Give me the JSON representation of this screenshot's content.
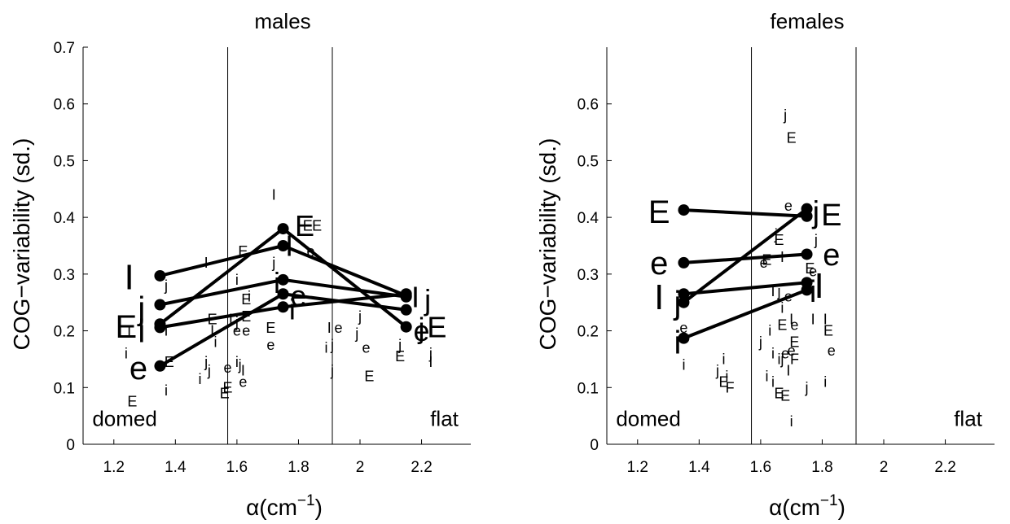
{
  "chart_data": [
    {
      "type": "line",
      "title": "males",
      "ylabel": "COG−variability (sd.)",
      "xlabel_main": "α(cm",
      "xlabel_sup": "−1",
      "xlabel_end": ")",
      "xlim": [
        1.1,
        2.36
      ],
      "ylim": [
        0,
        0.7
      ],
      "xticks": [
        1.2,
        1.4,
        1.6,
        1.8,
        2,
        2.2
      ],
      "xtick_labels": [
        "1.2",
        "1.4",
        "1.6",
        "1.8",
        "2",
        "2.2"
      ],
      "yticks": [
        0,
        0.1,
        0.2,
        0.3,
        0.4,
        0.5,
        0.6,
        0.7
      ],
      "ytick_labels": [
        "0",
        "0.1",
        "0.2",
        "0.3",
        "0.4",
        "0.5",
        "0.6",
        "0.7"
      ],
      "vlines": [
        1.57,
        1.91
      ],
      "regions": [
        {
          "text": "domed",
          "x": 1.13,
          "y": 0.045,
          "anchor": "start"
        },
        {
          "text": "flat",
          "x": 2.32,
          "y": 0.045,
          "anchor": "end"
        }
      ],
      "series": [
        {
          "x": [
            1.35,
            1.75,
            2.15
          ],
          "values": [
            0.297,
            0.35,
            0.262
          ]
        },
        {
          "x": [
            1.35,
            1.75,
            2.15
          ],
          "values": [
            0.246,
            0.29,
            0.26
          ]
        },
        {
          "x": [
            1.35,
            1.75,
            2.15
          ],
          "values": [
            0.212,
            0.38,
            0.207
          ]
        },
        {
          "x": [
            1.35,
            1.75,
            2.15
          ],
          "values": [
            0.206,
            0.242,
            0.265
          ]
        },
        {
          "x": [
            1.35,
            1.75,
            2.15
          ],
          "values": [
            0.138,
            0.265,
            0.237
          ]
        }
      ],
      "big_labels": [
        {
          "text": "I",
          "x": 1.25,
          "y": 0.295,
          "size": 44
        },
        {
          "text": "j",
          "x": 1.29,
          "y": 0.24,
          "size": 40
        },
        {
          "text": "E",
          "x": 1.24,
          "y": 0.208,
          "size": 40
        },
        {
          "text": "i",
          "x": 1.29,
          "y": 0.2,
          "size": 40
        },
        {
          "text": "e",
          "x": 1.28,
          "y": 0.135,
          "size": 40
        },
        {
          "text": "E",
          "x": 1.82,
          "y": 0.385,
          "size": 36
        },
        {
          "text": "I",
          "x": 1.77,
          "y": 0.35,
          "size": 36
        },
        {
          "text": "i",
          "x": 1.73,
          "y": 0.285,
          "size": 36
        },
        {
          "text": "e",
          "x": 1.8,
          "y": 0.262,
          "size": 36
        },
        {
          "text": "i",
          "x": 1.78,
          "y": 0.238,
          "size": 36
        },
        {
          "text": "I",
          "x": 2.18,
          "y": 0.26,
          "size": 36
        },
        {
          "text": "j",
          "x": 2.22,
          "y": 0.255,
          "size": 36
        },
        {
          "text": "j",
          "x": 2.2,
          "y": 0.205,
          "size": 36
        },
        {
          "text": "e",
          "x": 2.2,
          "y": 0.2,
          "size": 36
        },
        {
          "text": "E",
          "x": 2.25,
          "y": 0.207,
          "size": 36
        }
      ],
      "scatter_labels": [
        {
          "text": "I",
          "x": 1.72,
          "y": 0.44
        },
        {
          "text": "E",
          "x": 1.83,
          "y": 0.385
        },
        {
          "text": "E",
          "x": 1.86,
          "y": 0.385
        },
        {
          "text": "e",
          "x": 1.84,
          "y": 0.34
        },
        {
          "text": "E",
          "x": 1.62,
          "y": 0.34
        },
        {
          "text": "I",
          "x": 1.5,
          "y": 0.32
        },
        {
          "text": "j",
          "x": 1.72,
          "y": 0.32
        },
        {
          "text": "j",
          "x": 1.37,
          "y": 0.28
        },
        {
          "text": "i",
          "x": 1.6,
          "y": 0.29
        },
        {
          "text": "i",
          "x": 1.64,
          "y": 0.26
        },
        {
          "text": "E",
          "x": 1.63,
          "y": 0.255
        },
        {
          "text": "E",
          "x": 1.52,
          "y": 0.22
        },
        {
          "text": "I",
          "x": 1.58,
          "y": 0.22
        },
        {
          "text": "j",
          "x": 1.6,
          "y": 0.215
        },
        {
          "text": "E",
          "x": 1.63,
          "y": 0.225
        },
        {
          "text": "e",
          "x": 1.6,
          "y": 0.2
        },
        {
          "text": "e",
          "x": 1.63,
          "y": 0.2
        },
        {
          "text": "E",
          "x": 1.71,
          "y": 0.205
        },
        {
          "text": "e",
          "x": 1.71,
          "y": 0.175
        },
        {
          "text": "I",
          "x": 1.52,
          "y": 0.2
        },
        {
          "text": "i",
          "x": 1.53,
          "y": 0.18
        },
        {
          "text": "j",
          "x": 1.5,
          "y": 0.145
        },
        {
          "text": "j",
          "x": 1.51,
          "y": 0.13
        },
        {
          "text": "i",
          "x": 1.48,
          "y": 0.115
        },
        {
          "text": "e",
          "x": 1.57,
          "y": 0.135
        },
        {
          "text": "i",
          "x": 1.6,
          "y": 0.145
        },
        {
          "text": "j",
          "x": 1.61,
          "y": 0.14
        },
        {
          "text": "I",
          "x": 1.62,
          "y": 0.13
        },
        {
          "text": "e",
          "x": 1.62,
          "y": 0.11
        },
        {
          "text": "E",
          "x": 1.57,
          "y": 0.1
        },
        {
          "text": "E",
          "x": 1.56,
          "y": 0.09
        },
        {
          "text": "I",
          "x": 1.25,
          "y": 0.2
        },
        {
          "text": "i",
          "x": 1.24,
          "y": 0.16
        },
        {
          "text": "I",
          "x": 1.37,
          "y": 0.2
        },
        {
          "text": "E",
          "x": 1.38,
          "y": 0.145
        },
        {
          "text": "i",
          "x": 1.37,
          "y": 0.095
        },
        {
          "text": "E",
          "x": 1.26,
          "y": 0.075
        },
        {
          "text": "I",
          "x": 1.9,
          "y": 0.205
        },
        {
          "text": "i",
          "x": 1.89,
          "y": 0.17
        },
        {
          "text": "j",
          "x": 1.91,
          "y": 0.175
        },
        {
          "text": "e",
          "x": 1.93,
          "y": 0.205
        },
        {
          "text": "j",
          "x": 1.91,
          "y": 0.13
        },
        {
          "text": "j",
          "x": 2.0,
          "y": 0.225
        },
        {
          "text": "j",
          "x": 1.99,
          "y": 0.195
        },
        {
          "text": "e",
          "x": 2.02,
          "y": 0.17
        },
        {
          "text": "E",
          "x": 2.03,
          "y": 0.12
        },
        {
          "text": "E",
          "x": 2.13,
          "y": 0.155
        },
        {
          "text": "j",
          "x": 2.13,
          "y": 0.175
        },
        {
          "text": "j",
          "x": 2.23,
          "y": 0.16
        },
        {
          "text": "I",
          "x": 2.23,
          "y": 0.145
        }
      ]
    },
    {
      "type": "line",
      "title": "females",
      "ylabel": "COG−variability (sd.)",
      "xlabel_main": "α(cm",
      "xlabel_sup": "−1",
      "xlabel_end": ")",
      "xlim": [
        1.1,
        2.36
      ],
      "ylim": [
        0,
        0.7
      ],
      "xticks": [
        1.2,
        1.4,
        1.6,
        1.8,
        2,
        2.2
      ],
      "xtick_labels": [
        "1.2",
        "1.4",
        "1.6",
        "1.8",
        "2",
        "2.2"
      ],
      "yticks": [
        0,
        0.1,
        0.2,
        0.3,
        0.4,
        0.5,
        0.6
      ],
      "ytick_labels": [
        "0",
        "0.1",
        "0.2",
        "0.3",
        "0.4",
        "0.5",
        "0.6"
      ],
      "vlines": [
        1.57,
        1.91
      ],
      "regions": [
        {
          "text": "domed",
          "x": 1.13,
          "y": 0.045,
          "anchor": "start"
        },
        {
          "text": "flat",
          "x": 2.32,
          "y": 0.045,
          "anchor": "end"
        }
      ],
      "series": [
        {
          "x": [
            1.35,
            1.75
          ],
          "values": [
            0.413,
            0.402
          ]
        },
        {
          "x": [
            1.35,
            1.75
          ],
          "values": [
            0.32,
            0.335
          ]
        },
        {
          "x": [
            1.35,
            1.75
          ],
          "values": [
            0.265,
            0.285
          ]
        },
        {
          "x": [
            1.35,
            1.75
          ],
          "values": [
            0.25,
            0.415
          ]
        },
        {
          "x": [
            1.35,
            1.75
          ],
          "values": [
            0.187,
            0.272
          ]
        }
      ],
      "big_labels": [
        {
          "text": "E",
          "x": 1.27,
          "y": 0.41,
          "size": 40
        },
        {
          "text": "e",
          "x": 1.27,
          "y": 0.32,
          "size": 40
        },
        {
          "text": "I",
          "x": 1.27,
          "y": 0.26,
          "size": 44
        },
        {
          "text": "j",
          "x": 1.33,
          "y": 0.25,
          "size": 40
        },
        {
          "text": "i",
          "x": 1.33,
          "y": 0.18,
          "size": 40
        },
        {
          "text": "j",
          "x": 1.78,
          "y": 0.41,
          "size": 38
        },
        {
          "text": "E",
          "x": 1.83,
          "y": 0.405,
          "size": 38
        },
        {
          "text": "e",
          "x": 1.83,
          "y": 0.335,
          "size": 38
        },
        {
          "text": "I",
          "x": 1.79,
          "y": 0.28,
          "size": 44
        },
        {
          "text": "i",
          "x": 1.77,
          "y": 0.27,
          "size": 38
        }
      ],
      "scatter_labels": [
        {
          "text": "j",
          "x": 1.68,
          "y": 0.58
        },
        {
          "text": "E",
          "x": 1.7,
          "y": 0.54
        },
        {
          "text": "e",
          "x": 1.69,
          "y": 0.42
        },
        {
          "text": "j",
          "x": 1.65,
          "y": 0.37
        },
        {
          "text": "E",
          "x": 1.66,
          "y": 0.36
        },
        {
          "text": "j",
          "x": 1.78,
          "y": 0.36
        },
        {
          "text": "I",
          "x": 1.67,
          "y": 0.33
        },
        {
          "text": "E",
          "x": 1.62,
          "y": 0.325
        },
        {
          "text": "e",
          "x": 1.61,
          "y": 0.32
        },
        {
          "text": "E",
          "x": 1.76,
          "y": 0.31
        },
        {
          "text": "e",
          "x": 1.77,
          "y": 0.305
        },
        {
          "text": "j",
          "x": 1.66,
          "y": 0.27
        },
        {
          "text": "I",
          "x": 1.64,
          "y": 0.27
        },
        {
          "text": "e",
          "x": 1.69,
          "y": 0.26
        },
        {
          "text": "i",
          "x": 1.67,
          "y": 0.24
        },
        {
          "text": "E",
          "x": 1.67,
          "y": 0.21
        },
        {
          "text": "I",
          "x": 1.7,
          "y": 0.22
        },
        {
          "text": "e",
          "x": 1.71,
          "y": 0.21
        },
        {
          "text": "I",
          "x": 1.77,
          "y": 0.22
        },
        {
          "text": "i",
          "x": 1.63,
          "y": 0.2
        },
        {
          "text": "j",
          "x": 1.6,
          "y": 0.18
        },
        {
          "text": "i",
          "x": 1.64,
          "y": 0.16
        },
        {
          "text": "i",
          "x": 1.66,
          "y": 0.15
        },
        {
          "text": "j",
          "x": 1.67,
          "y": 0.15
        },
        {
          "text": "e",
          "x": 1.68,
          "y": 0.16
        },
        {
          "text": "e",
          "x": 1.7,
          "y": 0.165
        },
        {
          "text": "E",
          "x": 1.71,
          "y": 0.18
        },
        {
          "text": "F",
          "x": 1.71,
          "y": 0.15
        },
        {
          "text": "I",
          "x": 1.69,
          "y": 0.13
        },
        {
          "text": "i",
          "x": 1.48,
          "y": 0.15
        },
        {
          "text": "i",
          "x": 1.49,
          "y": 0.12
        },
        {
          "text": "E",
          "x": 1.48,
          "y": 0.11
        },
        {
          "text": "F",
          "x": 1.5,
          "y": 0.1
        },
        {
          "text": "j",
          "x": 1.46,
          "y": 0.13
        },
        {
          "text": "i",
          "x": 1.62,
          "y": 0.12
        },
        {
          "text": "i",
          "x": 1.64,
          "y": 0.11
        },
        {
          "text": "E",
          "x": 1.66,
          "y": 0.09
        },
        {
          "text": "E",
          "x": 1.68,
          "y": 0.085
        },
        {
          "text": "j",
          "x": 1.75,
          "y": 0.1
        },
        {
          "text": "i",
          "x": 1.81,
          "y": 0.11
        },
        {
          "text": "I",
          "x": 1.81,
          "y": 0.22
        },
        {
          "text": "E",
          "x": 1.82,
          "y": 0.2
        },
        {
          "text": "e",
          "x": 1.83,
          "y": 0.165
        },
        {
          "text": "i",
          "x": 1.7,
          "y": 0.04
        },
        {
          "text": "e",
          "x": 1.35,
          "y": 0.205
        },
        {
          "text": "i",
          "x": 1.35,
          "y": 0.14
        }
      ]
    }
  ]
}
